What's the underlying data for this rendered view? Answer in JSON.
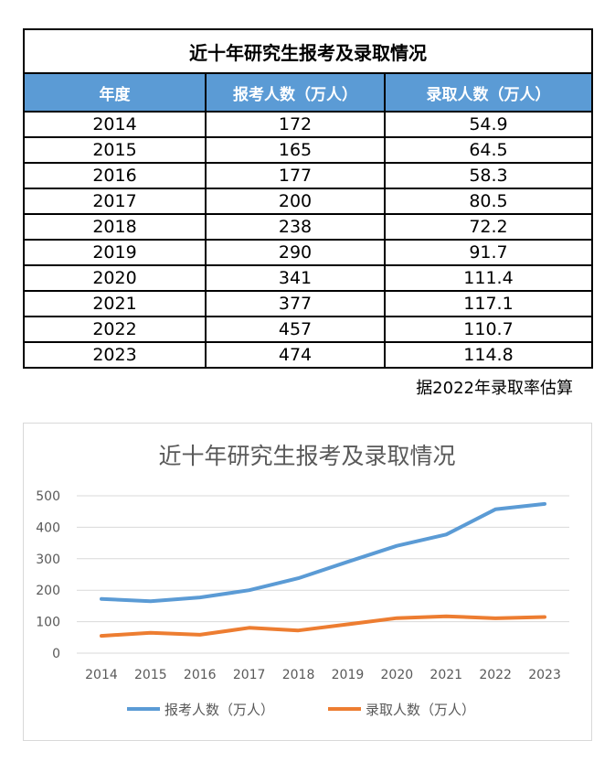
{
  "table": {
    "title": "近十年研究生报考及录取情况",
    "headers": [
      "年度",
      "报考人数（万人）",
      "录取人数（万人）"
    ],
    "rows": [
      [
        "2014",
        "172",
        "54.9"
      ],
      [
        "2015",
        "165",
        "64.5"
      ],
      [
        "2016",
        "177",
        "58.3"
      ],
      [
        "2017",
        "200",
        "80.5"
      ],
      [
        "2018",
        "238",
        "72.2"
      ],
      [
        "2019",
        "290",
        "91.7"
      ],
      [
        "2020",
        "341",
        "111.4"
      ],
      [
        "2021",
        "377",
        "117.1"
      ],
      [
        "2022",
        "457",
        "110.7"
      ],
      [
        "2023",
        "474",
        "114.8"
      ]
    ],
    "note": "据2022年录取率估算"
  },
  "chart_data": {
    "type": "line",
    "title": "近十年研究生报考及录取情况",
    "x": [
      "2014",
      "2015",
      "2016",
      "2017",
      "2018",
      "2019",
      "2020",
      "2021",
      "2022",
      "2023"
    ],
    "series": [
      {
        "name": "报考人数（万人）",
        "color": "#5b9bd5",
        "values": [
          172,
          165,
          177,
          200,
          238,
          290,
          341,
          377,
          457,
          474
        ]
      },
      {
        "name": "录取人数（万人）",
        "color": "#ed7d31",
        "values": [
          54.9,
          64.5,
          58.3,
          80.5,
          72.2,
          91.7,
          111.4,
          117.1,
          110.7,
          114.8
        ]
      }
    ],
    "ylim": [
      0,
      500
    ],
    "yticks": [
      "0",
      "100",
      "200",
      "300",
      "400",
      "500"
    ],
    "grid": true,
    "legend": "bottom"
  }
}
